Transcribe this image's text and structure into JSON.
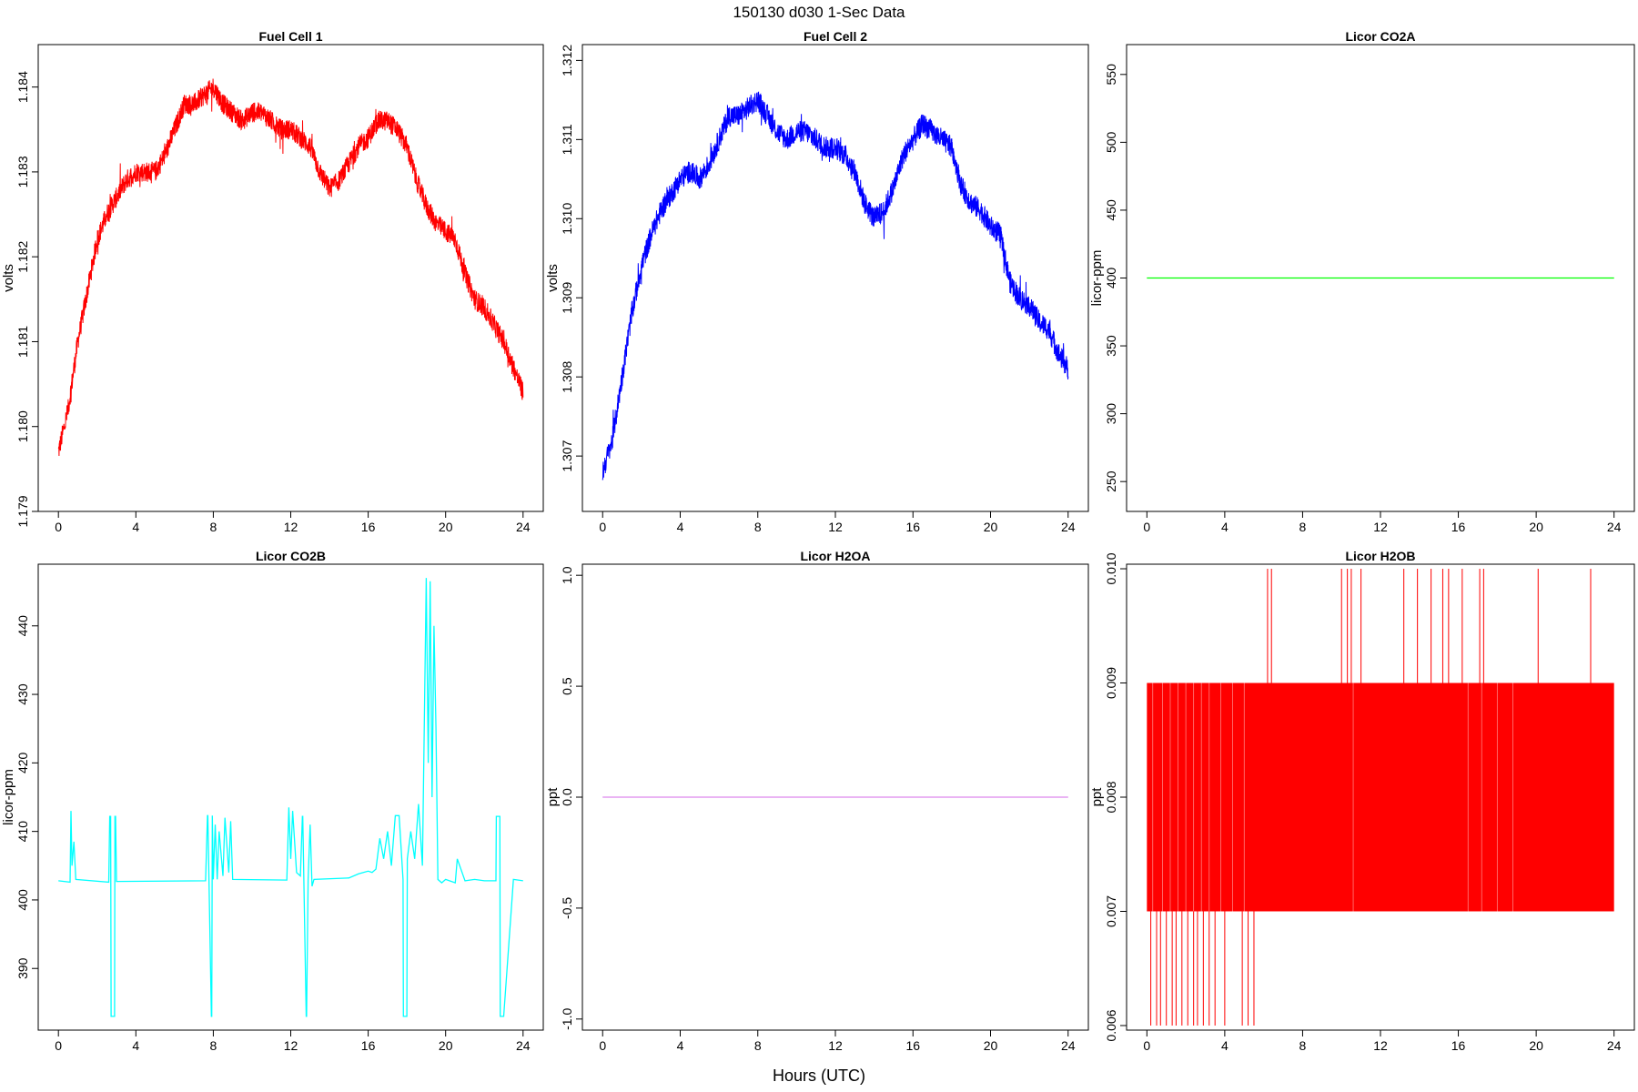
{
  "figure": {
    "title": "150130   d030   1-Sec Data",
    "xlabel": "Hours (UTC)"
  },
  "chart_data": [
    {
      "type": "line",
      "title": "Fuel Cell 1",
      "ylabel": "volts",
      "color": "#ff0000",
      "xlim": [
        0,
        24
      ],
      "ylim": [
        1.179,
        1.1845
      ],
      "xticks": [
        "0",
        "4",
        "8",
        "12",
        "16",
        "20",
        "24"
      ],
      "xtick_values": [
        0,
        4,
        8,
        12,
        16,
        20,
        24
      ],
      "yticks": [
        "1.179",
        "1.180",
        "1.181",
        "1.182",
        "1.183",
        "1.184"
      ],
      "ytick_values": [
        1.179,
        1.18,
        1.181,
        1.182,
        1.183,
        1.184
      ],
      "noise": 0.00012,
      "x": [
        0,
        0.5,
        1,
        1.5,
        2,
        2.5,
        3,
        3.5,
        4,
        4.5,
        5,
        5.5,
        6,
        6.5,
        7,
        7.5,
        8,
        8.5,
        9,
        9.5,
        10,
        10.5,
        11,
        11.5,
        12,
        12.5,
        13,
        13.5,
        14,
        14.5,
        15,
        15.5,
        16,
        16.5,
        17,
        17.5,
        18,
        18.5,
        19,
        19.5,
        20,
        20.5,
        21,
        21.5,
        22,
        22.5,
        23,
        23.5,
        24
      ],
      "y": [
        1.1797,
        1.1802,
        1.181,
        1.1816,
        1.1822,
        1.1825,
        1.1827,
        1.1829,
        1.183,
        1.183,
        1.183,
        1.1832,
        1.1835,
        1.1838,
        1.1838,
        1.1839,
        1.184,
        1.1838,
        1.1837,
        1.1836,
        1.1837,
        1.1837,
        1.1836,
        1.1835,
        1.1835,
        1.1834,
        1.1833,
        1.183,
        1.1828,
        1.1829,
        1.1831,
        1.1833,
        1.1834,
        1.1836,
        1.1836,
        1.1835,
        1.1833,
        1.1829,
        1.1826,
        1.1824,
        1.1823,
        1.1822,
        1.1818,
        1.1815,
        1.1814,
        1.1812,
        1.181,
        1.1807,
        1.1804
      ]
    },
    {
      "type": "line",
      "title": "Fuel Cell 2",
      "ylabel": "volts",
      "color": "#0000ff",
      "xlim": [
        0,
        24
      ],
      "ylim": [
        1.3063,
        1.3122
      ],
      "xticks": [
        "0",
        "4",
        "8",
        "12",
        "16",
        "20",
        "24"
      ],
      "xtick_values": [
        0,
        4,
        8,
        12,
        16,
        20,
        24
      ],
      "yticks": [
        "1.307",
        "1.308",
        "1.309",
        "1.310",
        "1.311",
        "1.312"
      ],
      "ytick_values": [
        1.307,
        1.308,
        1.309,
        1.31,
        1.311,
        1.312
      ],
      "noise": 0.00014,
      "x": [
        0,
        0.5,
        1,
        1.5,
        2,
        2.5,
        3,
        3.5,
        4,
        4.5,
        5,
        5.5,
        6,
        6.5,
        7,
        7.5,
        8,
        8.5,
        9,
        9.5,
        10,
        10.5,
        11,
        11.5,
        12,
        12.5,
        13,
        13.5,
        14,
        14.5,
        15,
        15.5,
        16,
        16.5,
        17,
        17.5,
        18,
        18.5,
        19,
        19.5,
        20,
        20.5,
        21,
        21.5,
        22,
        22.5,
        23,
        23.5,
        24
      ],
      "y": [
        1.3068,
        1.3072,
        1.308,
        1.3088,
        1.3094,
        1.3098,
        1.3101,
        1.3103,
        1.3105,
        1.3106,
        1.3105,
        1.3107,
        1.311,
        1.3113,
        1.3113,
        1.3114,
        1.3115,
        1.3113,
        1.3111,
        1.311,
        1.3111,
        1.3111,
        1.311,
        1.3109,
        1.3109,
        1.3108,
        1.3106,
        1.3102,
        1.31,
        1.3101,
        1.3104,
        1.3108,
        1.311,
        1.3112,
        1.3111,
        1.311,
        1.3109,
        1.3104,
        1.3102,
        1.3101,
        1.3099,
        1.3098,
        1.3092,
        1.309,
        1.3089,
        1.3087,
        1.3086,
        1.3083,
        1.3081
      ]
    },
    {
      "type": "line",
      "title": "Licor CO2A",
      "ylabel": "licor-ppm",
      "color": "#00ff00",
      "xlim": [
        0,
        24
      ],
      "ylim": [
        228,
        572
      ],
      "xticks": [
        "0",
        "4",
        "8",
        "12",
        "16",
        "20",
        "24"
      ],
      "xtick_values": [
        0,
        4,
        8,
        12,
        16,
        20,
        24
      ],
      "yticks": [
        "250",
        "300",
        "350",
        "400",
        "450",
        "500",
        "550"
      ],
      "ytick_values": [
        250,
        300,
        350,
        400,
        450,
        500,
        550
      ],
      "noise": 0,
      "x": [
        0,
        24
      ],
      "y": [
        400,
        400
      ]
    },
    {
      "type": "line",
      "title": "Licor CO2B",
      "ylabel": "licor-ppm",
      "color": "#00ffff",
      "xlim": [
        0,
        24
      ],
      "ylim": [
        381,
        449
      ],
      "xticks": [
        "0",
        "4",
        "8",
        "12",
        "16",
        "20",
        "24"
      ],
      "xtick_values": [
        0,
        4,
        8,
        12,
        16,
        20,
        24
      ],
      "yticks": [
        "390",
        "400",
        "410",
        "420",
        "430",
        "440"
      ],
      "ytick_values": [
        390,
        400,
        410,
        420,
        430,
        440
      ],
      "noise": 0,
      "x": [
        0,
        0.6,
        0.65,
        0.7,
        0.8,
        0.9,
        2.6,
        2.65,
        2.7,
        2.72,
        2.9,
        2.92,
        2.95,
        3.0,
        7.6,
        7.7,
        7.72,
        7.9,
        7.92,
        7.95,
        8.0,
        8.1,
        8.2,
        8.3,
        8.5,
        8.6,
        8.8,
        8.9,
        9.0,
        11.8,
        11.9,
        12.0,
        12.1,
        12.3,
        12.5,
        12.6,
        12.62,
        12.8,
        12.82,
        12.9,
        13.0,
        13.1,
        13.2,
        15.0,
        15.5,
        16.0,
        16.2,
        16.4,
        16.6,
        16.8,
        17.0,
        17.2,
        17.4,
        17.6,
        17.8,
        17.82,
        18.0,
        18.02,
        18.2,
        18.4,
        18.6,
        18.8,
        19.0,
        19.1,
        19.2,
        19.3,
        19.4,
        19.5,
        19.6,
        19.8,
        20.0,
        20.5,
        20.6,
        21.0,
        21.5,
        22.0,
        22.6,
        22.62,
        22.8,
        22.82,
        23.0,
        23.5,
        24.0
      ],
      "y": [
        402.8,
        402.6,
        413.0,
        405.0,
        408.5,
        403.0,
        402.6,
        412.2,
        412.2,
        383.0,
        383.0,
        412.2,
        412.2,
        402.7,
        402.8,
        412.3,
        412.3,
        383.0,
        383.0,
        412.3,
        403.0,
        411.0,
        403.0,
        410.0,
        403.5,
        412.0,
        404.0,
        411.5,
        403.0,
        402.9,
        413.5,
        406.0,
        413.0,
        404.0,
        403.5,
        412.2,
        412.2,
        383.0,
        383.0,
        403.0,
        411.0,
        402.0,
        403.0,
        403.2,
        403.8,
        404.2,
        404.0,
        404.5,
        409.0,
        406.0,
        410.0,
        405.0,
        412.3,
        412.3,
        403.0,
        383.0,
        383.0,
        406.0,
        410.0,
        406.0,
        414.0,
        405.0,
        447.0,
        420.0,
        446.5,
        415.0,
        440.0,
        425.0,
        403.0,
        402.5,
        403.0,
        402.5,
        406.0,
        402.8,
        403.0,
        402.8,
        402.8,
        412.2,
        412.2,
        383.0,
        383.0,
        403.0,
        402.8
      ]
    },
    {
      "type": "line",
      "title": "Licor H2OA",
      "ylabel": "ppt",
      "color": "#dd88ee",
      "xlim": [
        0,
        24
      ],
      "ylim": [
        -1.05,
        1.05
      ],
      "xticks": [
        "0",
        "4",
        "8",
        "12",
        "16",
        "20",
        "24"
      ],
      "xtick_values": [
        0,
        4,
        8,
        12,
        16,
        20,
        24
      ],
      "yticks": [
        "-1.0",
        "-0.5",
        "0.0",
        "0.5",
        "1.0"
      ],
      "ytick_values": [
        -1.0,
        -0.5,
        0.0,
        0.5,
        1.0
      ],
      "noise": 0,
      "x": [
        0,
        24
      ],
      "y": [
        0,
        0
      ]
    },
    {
      "type": "line",
      "title": "Licor H2OB",
      "ylabel": "ppt",
      "color": "#ff0000",
      "xlim": [
        0,
        24
      ],
      "ylim": [
        0.00596,
        0.01004
      ],
      "xticks": [
        "0",
        "4",
        "8",
        "12",
        "16",
        "20",
        "24"
      ],
      "xtick_values": [
        0,
        4,
        8,
        12,
        16,
        20,
        24
      ],
      "yticks": [
        "0.006",
        "0.007",
        "0.008",
        "0.009",
        "0.010"
      ],
      "ytick_values": [
        0.006,
        0.007,
        0.008,
        0.009,
        0.01
      ],
      "noise": 0,
      "band_x": [
        0,
        24
      ],
      "band_y": [
        0.007,
        0.009
      ],
      "spikes_high_x": [
        6.2,
        6.4,
        10.0,
        10.3,
        10.5,
        11.0,
        13.2,
        13.9,
        14.6,
        15.2,
        15.5,
        16.2,
        17.1,
        17.3,
        20.1,
        22.8
      ],
      "spikes_low_x": [
        0.2,
        0.5,
        0.7,
        1.0,
        1.3,
        1.5,
        1.8,
        2.1,
        2.4,
        2.6,
        2.9,
        3.2,
        3.5,
        4.0,
        4.9,
        5.2,
        5.5
      ],
      "lines_mid_x": [
        0.3,
        0.8,
        1.2,
        1.6,
        2.0,
        2.4,
        2.8,
        3.2,
        3.8,
        4.4,
        5.0,
        10.6,
        16.5,
        17.2,
        18.0,
        18.8
      ],
      "spike_level_high": 0.01,
      "spike_level_low": 0.006
    }
  ]
}
